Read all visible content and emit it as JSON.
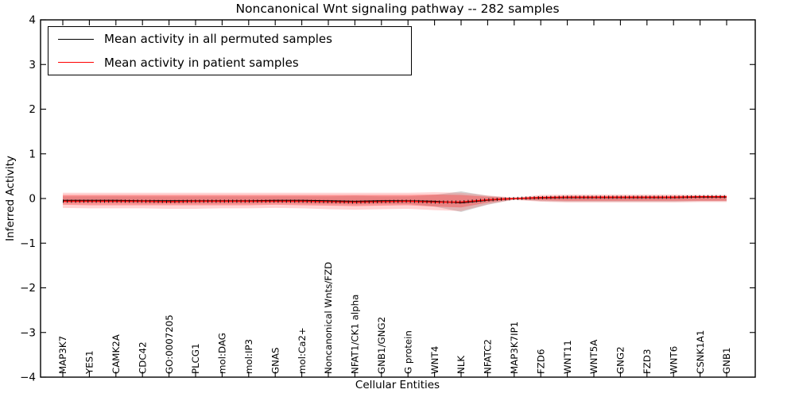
{
  "figure": {
    "title": "Noncanonical Wnt signaling pathway -- 282 samples",
    "background": "#ffffff"
  },
  "axes": {
    "x_label": "Cellular Entities",
    "y_label": "Inferred Activity",
    "y_tick_labels": [
      "4",
      "3",
      "2",
      "1",
      "0",
      "−1",
      "−2",
      "−3",
      "−4"
    ]
  },
  "legend": {
    "items": [
      {
        "label": "Mean activity in all permuted samples",
        "color": "#000000"
      },
      {
        "label": "Mean activity in patient samples",
        "color": "#ff0000"
      }
    ]
  },
  "colors": {
    "spine": "#000000",
    "permuted_line": "#000000",
    "patient_line": "#ff0000",
    "permuted_band": "#808080",
    "patient_band_outer": "#ff5555",
    "patient_band_inner": "#ff3333"
  },
  "chart_data": {
    "type": "line",
    "title": "Noncanonical Wnt signaling pathway -- 282 samples",
    "xlabel": "Cellular Entities",
    "ylabel": "Inferred Activity",
    "ylim": [
      -4,
      4
    ],
    "y_ticks": [
      4,
      3,
      2,
      1,
      0,
      -1,
      -2,
      -3,
      -4
    ],
    "grid": false,
    "legend_position": "upper left",
    "categories": [
      "MAP3K7",
      "YES1",
      "CAMK2A",
      "CDC42",
      "GO:0007205",
      "PLCG1",
      "mol:DAG",
      "mol:IP3",
      "GNAS",
      "mol:Ca2+",
      "Noncanonical Wnts/FZD",
      "NFAT1/CK1 alpha",
      "GNB1/GNG2",
      "G protein",
      "WNT4",
      "NLK",
      "NFATC2",
      "MAP3K7IP1",
      "FZD6",
      "WNT11",
      "WNT5A",
      "GNG2",
      "FZD3",
      "WNT6",
      "CSNK1A1",
      "GNB1"
    ],
    "series": [
      {
        "name": "Mean activity in all permuted samples",
        "color": "#000000",
        "style": "solid",
        "values": [
          -0.04,
          -0.04,
          -0.04,
          -0.05,
          -0.05,
          -0.05,
          -0.05,
          -0.05,
          -0.04,
          -0.04,
          -0.05,
          -0.06,
          -0.05,
          -0.05,
          -0.06,
          -0.1,
          -0.04,
          0.0,
          0.01,
          0.02,
          0.02,
          0.02,
          0.02,
          0.02,
          0.03,
          0.03
        ]
      },
      {
        "name": "Mean activity in patient samples",
        "color": "#ff0000",
        "style": "solid",
        "values": [
          -0.06,
          -0.06,
          -0.06,
          -0.06,
          -0.07,
          -0.06,
          -0.06,
          -0.06,
          -0.06,
          -0.06,
          -0.07,
          -0.08,
          -0.07,
          -0.06,
          -0.08,
          -0.08,
          -0.03,
          0.0,
          0.02,
          0.03,
          0.03,
          0.03,
          0.03,
          0.03,
          0.04,
          0.04
        ]
      }
    ],
    "bands": [
      {
        "name": "permuted-std-band",
        "color": "#808080",
        "opacity": 0.35,
        "upper": [
          0.05,
          0.05,
          0.05,
          0.05,
          0.05,
          0.05,
          0.05,
          0.05,
          0.05,
          0.05,
          0.05,
          0.06,
          0.05,
          0.05,
          0.08,
          0.16,
          0.06,
          0.01,
          0.04,
          0.04,
          0.04,
          0.04,
          0.04,
          0.04,
          0.04,
          0.04
        ],
        "lower": [
          -0.1,
          -0.1,
          -0.1,
          -0.11,
          -0.11,
          -0.11,
          -0.11,
          -0.11,
          -0.1,
          -0.11,
          -0.12,
          -0.13,
          -0.12,
          -0.12,
          -0.18,
          -0.3,
          -0.14,
          -0.02,
          -0.06,
          -0.07,
          -0.07,
          -0.07,
          -0.07,
          -0.07,
          -0.06,
          -0.06
        ]
      },
      {
        "name": "patient-std-outer-band",
        "color": "#ff5555",
        "opacity": 0.25,
        "upper": [
          0.13,
          0.13,
          0.13,
          0.13,
          0.13,
          0.13,
          0.13,
          0.13,
          0.13,
          0.13,
          0.13,
          0.13,
          0.13,
          0.13,
          0.14,
          0.13,
          0.07,
          0.02,
          0.08,
          0.09,
          0.09,
          0.09,
          0.09,
          0.09,
          0.08,
          0.08
        ],
        "lower": [
          -0.21,
          -0.22,
          -0.22,
          -0.22,
          -0.23,
          -0.23,
          -0.22,
          -0.22,
          -0.21,
          -0.22,
          -0.24,
          -0.25,
          -0.24,
          -0.23,
          -0.26,
          -0.28,
          -0.13,
          -0.03,
          -0.07,
          -0.09,
          -0.09,
          -0.09,
          -0.09,
          -0.09,
          -0.08,
          -0.08
        ]
      },
      {
        "name": "patient-std-inner-band",
        "color": "#ff3333",
        "opacity": 0.38,
        "upper": [
          0.08,
          0.08,
          0.08,
          0.08,
          0.08,
          0.08,
          0.08,
          0.08,
          0.08,
          0.08,
          0.08,
          0.08,
          0.08,
          0.08,
          0.09,
          0.08,
          0.04,
          0.01,
          0.05,
          0.06,
          0.06,
          0.06,
          0.06,
          0.06,
          0.06,
          0.06
        ],
        "lower": [
          -0.14,
          -0.15,
          -0.15,
          -0.15,
          -0.15,
          -0.15,
          -0.15,
          -0.15,
          -0.14,
          -0.15,
          -0.16,
          -0.17,
          -0.16,
          -0.15,
          -0.18,
          -0.2,
          -0.09,
          -0.02,
          -0.04,
          -0.05,
          -0.05,
          -0.05,
          -0.05,
          -0.05,
          -0.05,
          -0.05
        ]
      }
    ]
  }
}
